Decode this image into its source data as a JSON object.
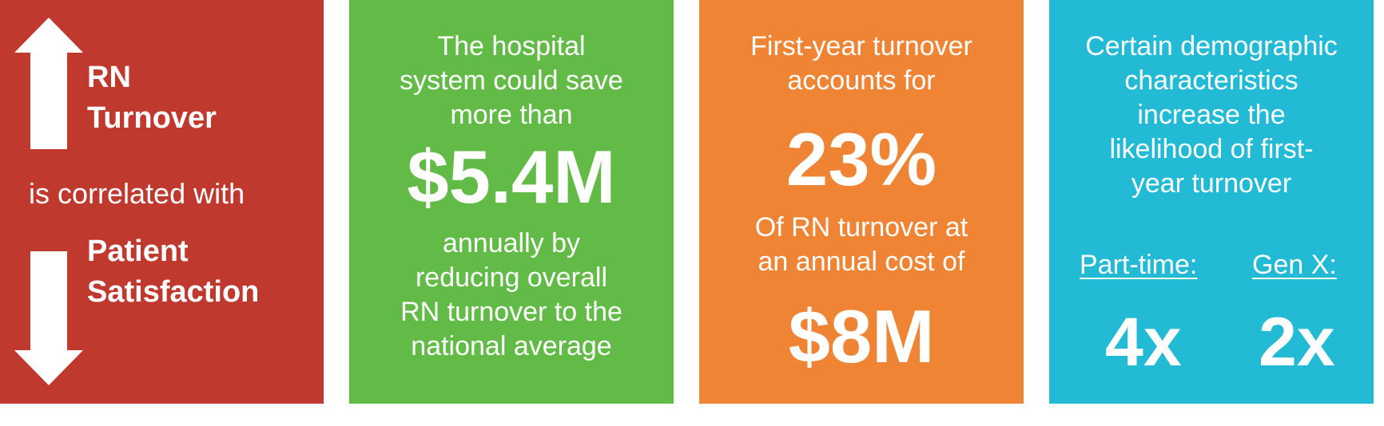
{
  "colors": {
    "red": "#C0392F",
    "green": "#63BB47",
    "orange": "#EE8434",
    "cyan": "#23BAD5",
    "text": "#FFFFFF"
  },
  "panel1": {
    "top_label": "RN\nTurnover",
    "middle_text": "is correlated with",
    "bottom_label": "Patient\nSatisfaction",
    "top_icon": "arrow-up-icon",
    "bottom_icon": "arrow-down-icon"
  },
  "panel2": {
    "intro": "The hospital\nsystem could save\nmore than",
    "figure": "$5.4M",
    "outro": "annually by\nreducing overall\nRN turnover to the\nnational average"
  },
  "panel3": {
    "intro": "First-year turnover\naccounts for",
    "percent": "23%",
    "middle": "Of RN turnover at\nan annual cost of",
    "cost": "$8M"
  },
  "panel4": {
    "intro": "Certain demographic\ncharacteristics\nincrease the\nlikelihood of first-\nyear turnover",
    "factors": [
      {
        "label": "Part-time:",
        "multiplier": "4x"
      },
      {
        "label": "Gen X:",
        "multiplier": "2x"
      }
    ]
  }
}
